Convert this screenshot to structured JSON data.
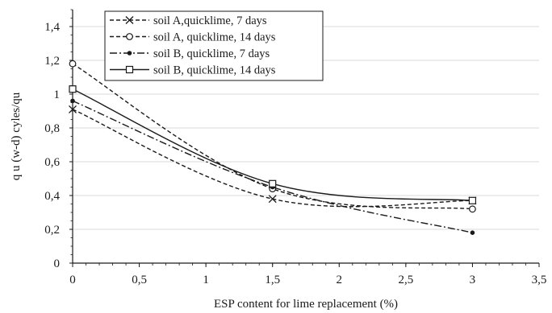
{
  "chart_data": {
    "type": "line",
    "xlabel": "ESP content for lime replacement (%)",
    "ylabel": "q u (w-d) cyles/qu",
    "xlim": [
      0,
      3.5
    ],
    "ylim": [
      0,
      1.5
    ],
    "x_ticks": [
      "0",
      "0,5",
      "1",
      "1,5",
      "2",
      "2,5",
      "3",
      "3,5"
    ],
    "y_ticks": [
      "0",
      "0,2",
      "0,4",
      "0,6",
      "0,8",
      "1",
      "1,2",
      "1,4"
    ],
    "grid": "horizontal",
    "legend_position": "top-left",
    "x": [
      0,
      1.5,
      3
    ],
    "series": [
      {
        "name": "soil A,quicklime, 7 days",
        "values": [
          0.91,
          0.38,
          0.37
        ],
        "marker": "x",
        "line_style": "dashed",
        "color": "#1a1a1a"
      },
      {
        "name": "soil A, quicklime, 14 days",
        "values": [
          1.18,
          0.44,
          0.32
        ],
        "marker": "circle",
        "line_style": "dashed",
        "color": "#1a1a1a"
      },
      {
        "name": "soil B, quicklime, 7 days",
        "values": [
          0.96,
          0.45,
          0.18
        ],
        "marker": "dot",
        "line_style": "dash-dot",
        "color": "#1a1a1a"
      },
      {
        "name": "soil B, quicklime, 14 days",
        "values": [
          1.03,
          0.47,
          0.37
        ],
        "marker": "square",
        "line_style": "solid",
        "color": "#1a1a1a"
      }
    ]
  }
}
